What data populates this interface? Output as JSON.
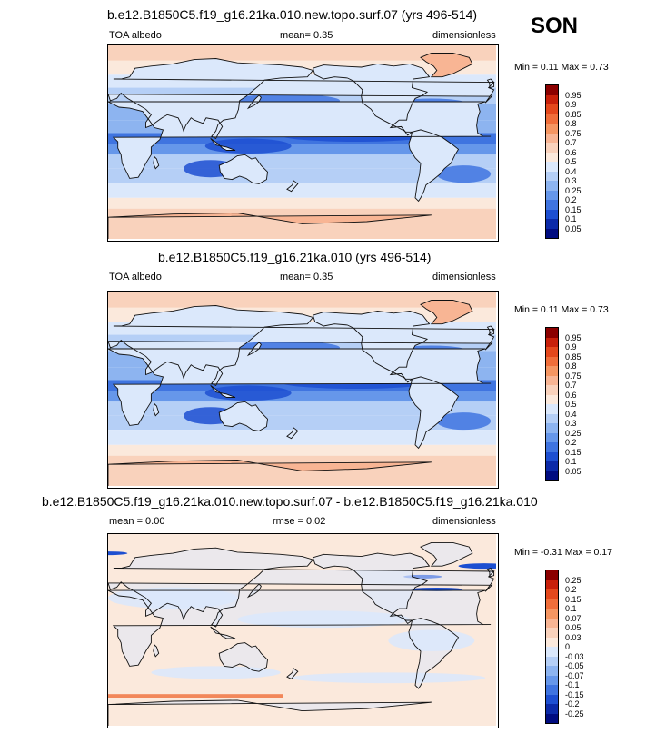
{
  "season": "SON",
  "panels": [
    {
      "title": "b.e12.B1850C5.f19_g16.21ka.010.new.topo.surf.07 (yrs 496-514)",
      "left_label": "TOA albedo",
      "center_label": "mean=  0.35",
      "right_label": "dimensionless",
      "minmax": "Min =  0.11 Max =  0.73",
      "kind": "field"
    },
    {
      "title": "b.e12.B1850C5.f19_g16.21ka.010 (yrs 496-514)",
      "left_label": "TOA albedo",
      "center_label": "mean=  0.35",
      "right_label": "dimensionless",
      "minmax": "Min =  0.11 Max =  0.73",
      "kind": "field"
    },
    {
      "title": "b.e12.B1850C5.f19_g16.21ka.010.new.topo.surf.07 - b.e12.B1850C5.f19_g16.21ka.010",
      "left_label": "mean =  0.00",
      "center_label": "rmse =  0.02",
      "right_label": "dimensionless",
      "minmax": "Min =  -0.31 Max =  0.17",
      "kind": "diff"
    }
  ],
  "chart_data": [
    {
      "type": "heatmap",
      "title": "b.e12.B1850C5.f19_g16.21ka.010.new.topo.surf.07 (yrs 496-514)",
      "variable": "TOA albedo",
      "units": "dimensionless",
      "mean": 0.35,
      "min": 0.11,
      "max": 0.73,
      "colorbar_levels": [
        "0.95",
        "0.9",
        "0.85",
        "0.8",
        "0.75",
        "0.7",
        "0.6",
        "0.5",
        "0.4",
        "0.3",
        "0.25",
        "0.2",
        "0.15",
        "0.1",
        "0.05"
      ],
      "colorbar_colors": [
        "#8b0000",
        "#c8200a",
        "#e4481c",
        "#f06e3a",
        "#f59662",
        "#f8b594",
        "#f9d2bc",
        "#fbe9dc",
        "#dbe8fb",
        "#b5cff6",
        "#8db4f0",
        "#6697ea",
        "#3f74e0",
        "#1d4fd1",
        "#0b2aa8",
        "#000c80"
      ]
    },
    {
      "type": "heatmap",
      "title": "b.e12.B1850C5.f19_g16.21ka.010 (yrs 496-514)",
      "variable": "TOA albedo",
      "units": "dimensionless",
      "mean": 0.35,
      "min": 0.11,
      "max": 0.73,
      "colorbar_levels": [
        "0.95",
        "0.9",
        "0.85",
        "0.8",
        "0.75",
        "0.7",
        "0.6",
        "0.5",
        "0.4",
        "0.3",
        "0.25",
        "0.2",
        "0.15",
        "0.1",
        "0.05"
      ],
      "colorbar_colors": [
        "#8b0000",
        "#c8200a",
        "#e4481c",
        "#f06e3a",
        "#f59662",
        "#f8b594",
        "#f9d2bc",
        "#fbe9dc",
        "#dbe8fb",
        "#b5cff6",
        "#8db4f0",
        "#6697ea",
        "#3f74e0",
        "#1d4fd1",
        "#0b2aa8",
        "#000c80"
      ]
    },
    {
      "type": "heatmap",
      "title": "b.e12.B1850C5.f19_g16.21ka.010.new.topo.surf.07 - b.e12.B1850C5.f19_g16.21ka.010",
      "units": "dimensionless",
      "mean": 0.0,
      "rmse": 0.02,
      "min": -0.31,
      "max": 0.17,
      "colorbar_levels": [
        "0.25",
        "0.2",
        "0.15",
        "0.1",
        "0.07",
        "0.05",
        "0.03",
        "0",
        "-0.03",
        "-0.05",
        "-0.07",
        "-0.1",
        "-0.15",
        "-0.2",
        "-0.25"
      ],
      "colorbar_colors": [
        "#8b0000",
        "#c8200a",
        "#e4481c",
        "#f06e3a",
        "#f59662",
        "#f8b594",
        "#f9d2bc",
        "#fbe9dc",
        "#dbe8fb",
        "#b5cff6",
        "#8db4f0",
        "#6697ea",
        "#3f74e0",
        "#1d4fd1",
        "#0b2aa8",
        "#000c80"
      ]
    }
  ]
}
